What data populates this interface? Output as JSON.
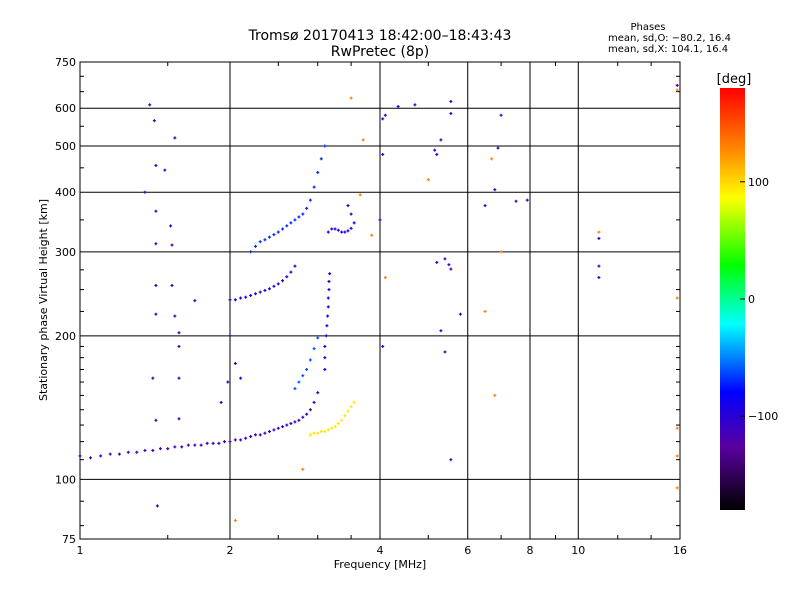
{
  "chart_data": {
    "type": "scatter",
    "title": "Tromsø 20170413 18:42:00–18:43:43",
    "subtitle": "RwPretec (8p)",
    "xlabel": "Frequency [MHz]",
    "ylabel": "Stationary phase Virtual Height [km]",
    "x_scale": "log",
    "y_scale": "log",
    "xlim": [
      1,
      16
    ],
    "ylim": [
      75,
      750
    ],
    "x_ticks": [
      1,
      2,
      4,
      6,
      8,
      10,
      16
    ],
    "y_ticks": [
      75,
      100,
      200,
      300,
      400,
      500,
      600,
      750
    ],
    "grid": true,
    "legend": {
      "title": "Phases",
      "lines": [
        "mean, sd,O: −80.2, 16.4",
        "mean, sd,X: 104.1, 16.4"
      ]
    },
    "colorbar": {
      "label": "[deg]",
      "range": [
        -180,
        180
      ],
      "ticks": [
        100,
        0,
        -100
      ],
      "tick_labels": [
        "100",
        "0",
        "−100"
      ]
    },
    "traces": [
      {
        "name": "o-trace-E",
        "phase": -110,
        "points": [
          [
            1.0,
            112
          ],
          [
            1.05,
            111
          ],
          [
            1.1,
            112
          ],
          [
            1.15,
            113
          ],
          [
            1.2,
            113
          ],
          [
            1.25,
            114
          ],
          [
            1.3,
            114
          ],
          [
            1.35,
            115
          ],
          [
            1.4,
            115
          ],
          [
            1.45,
            116
          ],
          [
            1.5,
            116
          ],
          [
            1.55,
            117
          ],
          [
            1.6,
            117
          ],
          [
            1.65,
            118
          ],
          [
            1.7,
            118
          ],
          [
            1.75,
            118
          ],
          [
            1.8,
            119
          ],
          [
            1.85,
            119
          ],
          [
            1.9,
            119
          ],
          [
            1.95,
            120
          ],
          [
            2.0,
            120
          ],
          [
            2.05,
            121
          ],
          [
            2.1,
            121
          ],
          [
            2.15,
            122
          ],
          [
            2.2,
            123
          ],
          [
            2.25,
            124
          ],
          [
            2.3,
            124
          ],
          [
            2.35,
            125
          ],
          [
            2.4,
            126
          ],
          [
            2.45,
            127
          ],
          [
            2.5,
            128
          ],
          [
            2.55,
            129
          ],
          [
            2.6,
            130
          ],
          [
            2.65,
            131
          ],
          [
            2.7,
            132
          ],
          [
            2.75,
            133
          ],
          [
            2.8,
            135
          ],
          [
            2.85,
            137
          ],
          [
            2.9,
            140
          ],
          [
            2.95,
            145
          ],
          [
            3.0,
            152
          ]
        ]
      },
      {
        "name": "x-trace-E",
        "phase": 95,
        "points": [
          [
            2.9,
            124
          ],
          [
            2.95,
            125
          ],
          [
            3.0,
            125
          ],
          [
            3.05,
            126
          ],
          [
            3.1,
            126
          ],
          [
            3.15,
            127
          ],
          [
            3.2,
            128
          ],
          [
            3.25,
            129
          ],
          [
            3.3,
            131
          ],
          [
            3.35,
            133
          ],
          [
            3.4,
            136
          ],
          [
            3.45,
            139
          ],
          [
            3.5,
            142
          ],
          [
            3.55,
            145
          ]
        ]
      },
      {
        "name": "o-trace-F1",
        "phase": -100,
        "points": [
          [
            2.0,
            238
          ],
          [
            2.05,
            238
          ],
          [
            2.1,
            240
          ],
          [
            2.15,
            241
          ],
          [
            2.2,
            243
          ],
          [
            2.25,
            245
          ],
          [
            2.3,
            247
          ],
          [
            2.35,
            249
          ],
          [
            2.4,
            251
          ],
          [
            2.45,
            254
          ],
          [
            2.5,
            257
          ],
          [
            2.55,
            261
          ],
          [
            2.6,
            266
          ],
          [
            2.65,
            272
          ],
          [
            2.7,
            280
          ]
        ]
      },
      {
        "name": "o-trace-F2",
        "phase": -70,
        "points": [
          [
            2.2,
            300
          ],
          [
            2.25,
            308
          ],
          [
            2.3,
            315
          ],
          [
            2.35,
            318
          ],
          [
            2.4,
            322
          ],
          [
            2.45,
            326
          ],
          [
            2.5,
            330
          ],
          [
            2.55,
            335
          ],
          [
            2.6,
            340
          ],
          [
            2.65,
            345
          ],
          [
            2.7,
            350
          ],
          [
            2.75,
            355
          ],
          [
            2.8,
            360
          ],
          [
            2.85,
            370
          ],
          [
            2.9,
            385
          ],
          [
            2.95,
            410
          ],
          [
            3.0,
            440
          ],
          [
            3.05,
            470
          ],
          [
            3.1,
            500
          ]
        ]
      },
      {
        "name": "o-trace-vertical",
        "phase": -90,
        "points": [
          [
            3.1,
            170
          ],
          [
            3.1,
            180
          ],
          [
            3.1,
            190
          ],
          [
            3.12,
            200
          ],
          [
            3.13,
            210
          ],
          [
            3.14,
            220
          ],
          [
            3.15,
            230
          ],
          [
            3.15,
            240
          ],
          [
            3.16,
            250
          ],
          [
            3.16,
            260
          ],
          [
            3.17,
            270
          ]
        ]
      },
      {
        "name": "x-trace-F",
        "phase": -60,
        "points": [
          [
            2.7,
            155
          ],
          [
            2.75,
            160
          ],
          [
            2.8,
            165
          ],
          [
            2.85,
            170
          ],
          [
            2.9,
            178
          ],
          [
            2.95,
            188
          ],
          [
            3.0,
            198
          ]
        ]
      },
      {
        "name": "x-trace-F2",
        "phase": -95,
        "points": [
          [
            3.15,
            330
          ],
          [
            3.2,
            335
          ],
          [
            3.25,
            335
          ],
          [
            3.3,
            333
          ],
          [
            3.35,
            330
          ],
          [
            3.4,
            330
          ],
          [
            3.45,
            332
          ],
          [
            3.5,
            336
          ],
          [
            3.55,
            345
          ],
          [
            3.5,
            360
          ],
          [
            3.45,
            375
          ]
        ]
      },
      {
        "name": "scatter-1",
        "phase": -110,
        "points": [
          [
            1.38,
            610
          ],
          [
            1.41,
            565
          ],
          [
            1.55,
            520
          ],
          [
            1.42,
            455
          ],
          [
            1.48,
            445
          ],
          [
            1.35,
            400
          ],
          [
            1.42,
            365
          ],
          [
            1.52,
            340
          ],
          [
            1.42,
            312
          ],
          [
            1.53,
            310
          ],
          [
            1.42,
            255
          ],
          [
            1.53,
            255
          ],
          [
            1.7,
            237
          ],
          [
            1.42,
            222
          ],
          [
            1.55,
            220
          ],
          [
            1.58,
            203
          ],
          [
            1.58,
            190
          ],
          [
            1.4,
            163
          ],
          [
            1.58,
            163
          ],
          [
            1.42,
            133
          ],
          [
            1.58,
            134
          ],
          [
            1.43,
            88
          ],
          [
            1.92,
            145
          ],
          [
            1.98,
            160
          ],
          [
            2.05,
            175
          ],
          [
            2.1,
            163
          ],
          [
            2.0,
            200
          ],
          [
            4.0,
            350
          ],
          [
            4.05,
            480
          ],
          [
            4.05,
            570
          ],
          [
            4.1,
            580
          ],
          [
            4.35,
            605
          ],
          [
            4.7,
            610
          ],
          [
            5.15,
            490
          ],
          [
            5.2,
            480
          ],
          [
            5.3,
            515
          ],
          [
            5.55,
            620
          ],
          [
            5.55,
            585
          ],
          [
            5.4,
            290
          ],
          [
            5.5,
            282
          ],
          [
            5.55,
            276
          ],
          [
            5.8,
            222
          ],
          [
            5.2,
            285
          ],
          [
            5.3,
            205
          ],
          [
            5.4,
            185
          ],
          [
            5.55,
            110
          ],
          [
            4.05,
            190
          ],
          [
            6.5,
            375
          ],
          [
            6.8,
            405
          ],
          [
            6.9,
            495
          ],
          [
            7.0,
            580
          ],
          [
            7.5,
            383
          ],
          [
            7.9,
            385
          ],
          [
            11,
            265
          ],
          [
            11,
            280
          ],
          [
            11,
            320
          ],
          [
            15.8,
            670
          ]
        ]
      },
      {
        "name": "scatter-2",
        "phase": 130,
        "points": [
          [
            6.5,
            225
          ],
          [
            6.7,
            470
          ],
          [
            6.8,
            150
          ],
          [
            5.0,
            425
          ],
          [
            4.1,
            265
          ],
          [
            3.5,
            630
          ],
          [
            3.65,
            395
          ],
          [
            3.7,
            515
          ],
          [
            3.85,
            325
          ],
          [
            2.8,
            105
          ],
          [
            2.05,
            82
          ],
          [
            15.8,
            240
          ],
          [
            15.8,
            128
          ],
          [
            15.8,
            112
          ],
          [
            15.8,
            96
          ],
          [
            15.8,
            655
          ],
          [
            11,
            330
          ],
          [
            7.0,
            300
          ]
        ]
      }
    ]
  }
}
